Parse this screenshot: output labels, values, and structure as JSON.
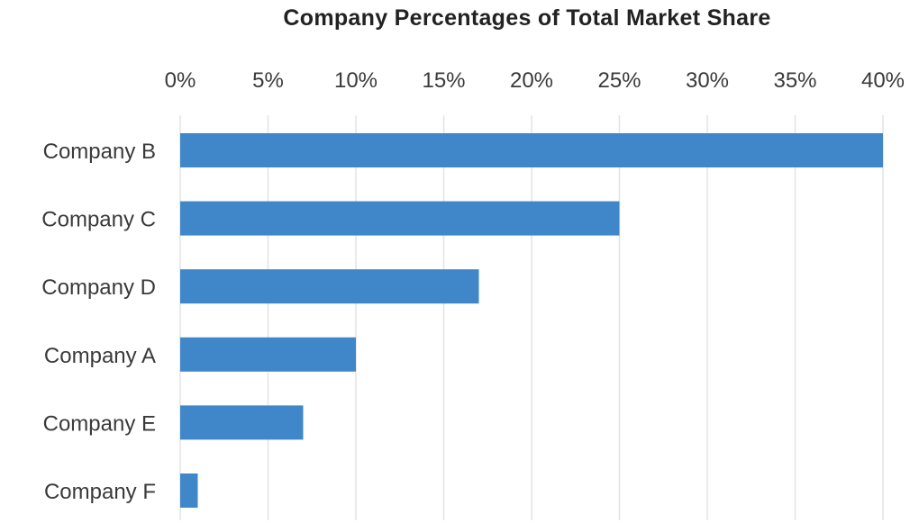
{
  "chart_data": {
    "type": "bar",
    "orientation": "horizontal",
    "title": "Company Percentages of Total Market Share",
    "xlabel": "",
    "ylabel": "",
    "categories": [
      "Company B",
      "Company C",
      "Company D",
      "Company A",
      "Company E",
      "Company F"
    ],
    "values": [
      40,
      25,
      17,
      10,
      7,
      1
    ],
    "value_unit": "%",
    "xlim": [
      0,
      40
    ],
    "x_ticks": [
      "0%",
      "5%",
      "10%",
      "15%",
      "20%",
      "25%",
      "30%",
      "35%",
      "40%"
    ],
    "x_axis_position": "top",
    "grid": true,
    "legend": "none",
    "bar_color": "#3f87c8",
    "grid_color": "#e3e3e3"
  }
}
